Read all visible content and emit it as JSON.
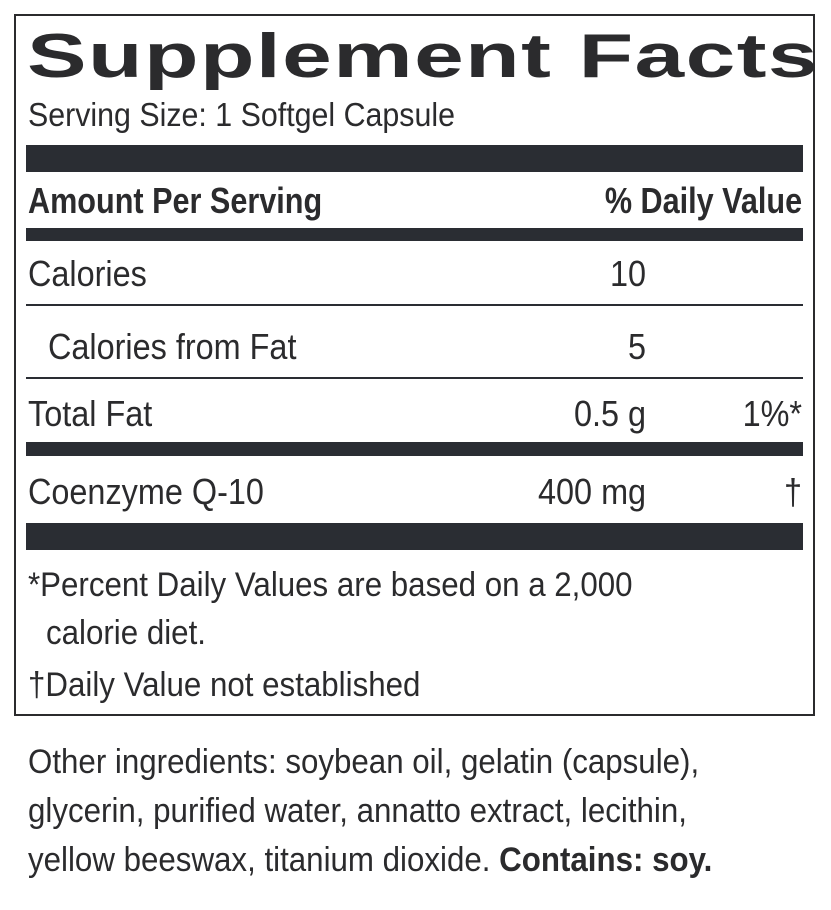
{
  "title": "Supplement Facts",
  "serving_size": "Serving Size: 1 Softgel Capsule",
  "header": {
    "amount": "Amount Per Serving",
    "dv": "% Daily Value"
  },
  "rows": [
    {
      "name": "Calories",
      "amount": "10",
      "dv": ""
    },
    {
      "name": "Calories from Fat",
      "amount": "5",
      "dv": ""
    },
    {
      "name": "Total Fat",
      "amount": "0.5 g",
      "dv": "1%*"
    },
    {
      "name": "Coenzyme Q-10",
      "amount": "400 mg",
      "dv": "†"
    }
  ],
  "footnotes": {
    "percent_line1": "*Percent Daily Values are based on a 2,000",
    "percent_line2": "calorie diet.",
    "dagger": "†Daily Value not established"
  },
  "other_ingredients": {
    "line1": "Other ingredients: soybean oil, gelatin (capsule),",
    "line2": "glycerin, purified water, annatto extract, lecithin,",
    "line3_prefix": "yellow beeswax, titanium dioxide. ",
    "contains": "Contains: soy."
  }
}
